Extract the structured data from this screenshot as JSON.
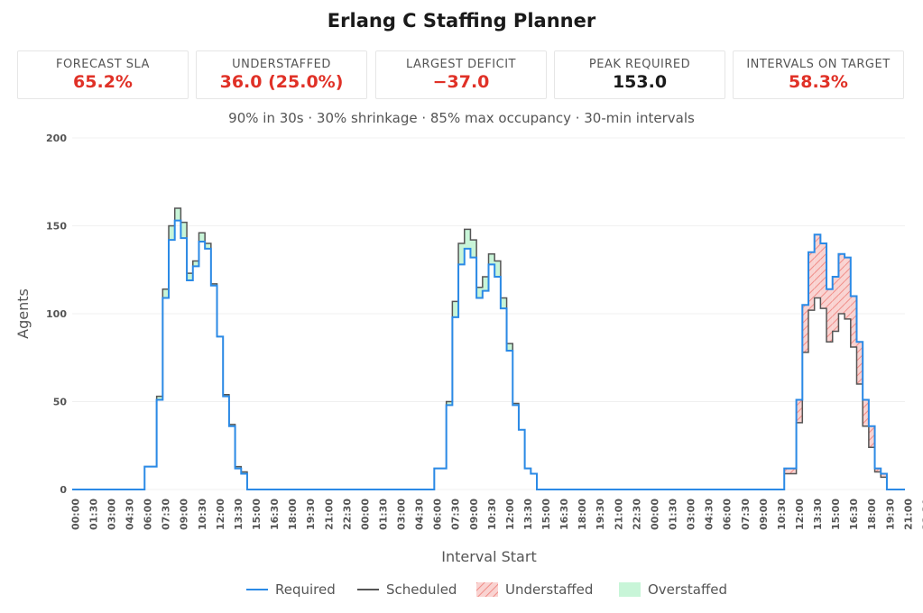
{
  "title": "Erlang C Staffing Planner",
  "subtitle": "90% in 30s · 30% shrinkage · 85% max occupancy · 30-min intervals",
  "kpis": [
    {
      "label": "FORECAST SLA",
      "value": "65.2%",
      "color": "#e03127"
    },
    {
      "label": "UNDERSTAFFED",
      "value": "36.0 (25.0%)",
      "color": "#e03127"
    },
    {
      "label": "LARGEST DEFICIT",
      "value": "−37.0",
      "color": "#e03127"
    },
    {
      "label": "PEAK REQUIRED",
      "value": "153.0",
      "color": "#1a1a1a"
    },
    {
      "label": "INTERVALS ON TARGET",
      "value": "58.3%",
      "color": "#e03127"
    }
  ],
  "legend": {
    "required": "Required",
    "scheduled": "Scheduled",
    "understaffed": "Understaffed",
    "overstaffed": "Overstaffed"
  },
  "colors": {
    "required": "#2b8ae6",
    "scheduled": "#555555",
    "understaffed": "#f4a3a0",
    "overstaffed": "#c8f5d8",
    "bad": "#e03127"
  },
  "chart_data": {
    "type": "area",
    "xlabel": "Interval Start",
    "ylabel": "Agents",
    "ylim": [
      0,
      200
    ],
    "yticks": [
      0,
      50,
      100,
      150,
      200
    ],
    "grid": true,
    "legend_position": "bottom",
    "x_tick_labels": [
      "00:00",
      "01:30",
      "03:00",
      "04:30",
      "06:00",
      "07:30",
      "09:00",
      "10:30",
      "12:00",
      "13:30",
      "15:00",
      "16:30",
      "18:00",
      "19:30",
      "21:00",
      "22:30",
      "00:00",
      "01:30",
      "03:00",
      "04:30",
      "06:00",
      "07:30",
      "09:00",
      "10:30",
      "12:00",
      "13:30",
      "15:00",
      "16:30",
      "18:00",
      "19:30",
      "21:00",
      "22:30",
      "00:00",
      "01:30",
      "03:00",
      "04:30",
      "06:00",
      "07:30",
      "09:00",
      "10:30",
      "12:00",
      "13:30",
      "15:00",
      "16:30",
      "18:00",
      "19:30",
      "21:00",
      "22:30"
    ],
    "series": [
      {
        "name": "Required",
        "values": [
          0,
          0,
          0,
          0,
          0,
          0,
          0,
          0,
          0,
          0,
          0,
          0,
          13,
          13,
          51,
          109,
          142,
          153,
          143,
          119,
          127,
          141,
          137,
          116,
          87,
          53,
          36,
          12,
          9,
          0,
          0,
          0,
          0,
          0,
          0,
          0,
          0,
          0,
          0,
          0,
          0,
          0,
          0,
          0,
          0,
          0,
          0,
          0,
          0,
          0,
          0,
          0,
          0,
          0,
          0,
          0,
          0,
          0,
          0,
          0,
          12,
          12,
          48,
          98,
          128,
          137,
          132,
          109,
          113,
          128,
          121,
          103,
          79,
          48,
          34,
          12,
          9,
          0,
          0,
          0,
          0,
          0,
          0,
          0,
          0,
          0,
          0,
          0,
          0,
          0,
          0,
          0,
          0,
          0,
          0,
          0,
          0,
          0,
          0,
          0,
          0,
          0,
          0,
          0,
          0,
          0,
          0,
          0,
          0,
          0,
          0,
          0,
          0,
          0,
          0,
          0,
          0,
          0,
          12,
          12,
          51,
          105,
          135,
          145,
          140,
          114,
          121,
          134,
          132,
          110,
          84,
          51,
          36,
          12,
          9,
          0,
          0,
          0
        ]
      },
      {
        "name": "Scheduled",
        "values": [
          0,
          0,
          0,
          0,
          0,
          0,
          0,
          0,
          0,
          0,
          0,
          0,
          13,
          13,
          53,
          114,
          150,
          160,
          152,
          123,
          130,
          146,
          140,
          117,
          87,
          54,
          37,
          13,
          10,
          0,
          0,
          0,
          0,
          0,
          0,
          0,
          0,
          0,
          0,
          0,
          0,
          0,
          0,
          0,
          0,
          0,
          0,
          0,
          0,
          0,
          0,
          0,
          0,
          0,
          0,
          0,
          0,
          0,
          0,
          0,
          12,
          12,
          50,
          107,
          140,
          148,
          142,
          115,
          121,
          134,
          130,
          109,
          83,
          49,
          34,
          12,
          9,
          0,
          0,
          0,
          0,
          0,
          0,
          0,
          0,
          0,
          0,
          0,
          0,
          0,
          0,
          0,
          0,
          0,
          0,
          0,
          0,
          0,
          0,
          0,
          0,
          0,
          0,
          0,
          0,
          0,
          0,
          0,
          0,
          0,
          0,
          0,
          0,
          0,
          0,
          0,
          0,
          0,
          9,
          9,
          38,
          78,
          102,
          109,
          103,
          84,
          90,
          100,
          97,
          81,
          60,
          36,
          24,
          10,
          7,
          0,
          0,
          0
        ]
      }
    ]
  }
}
